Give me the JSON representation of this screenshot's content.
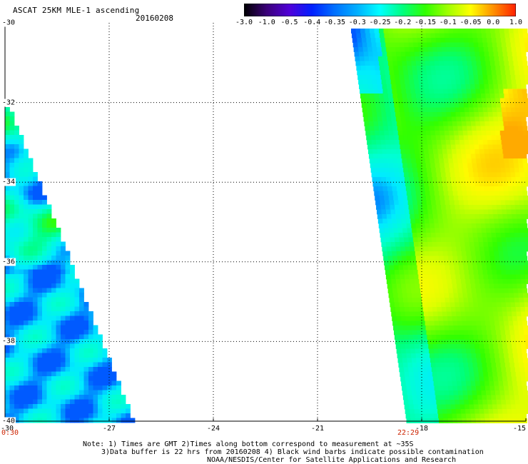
{
  "header": {
    "title": "ASCAT 25KM MLE-1 ascending",
    "date": "20160208"
  },
  "colorbar": {
    "labels": [
      "-3.0",
      "-1.0",
      "-0.5",
      "-0.4",
      "-0.35",
      "-0.3",
      "-0.25",
      "-0.2",
      "-0.15",
      "-0.1",
      "-0.05",
      "0.0",
      "1.0"
    ],
    "colors": [
      "#000000",
      "#3a0078",
      "#5000d8",
      "#0020ff",
      "#0070ff",
      "#00b0ff",
      "#00ffff",
      "#00ff80",
      "#30ff00",
      "#a0ff00",
      "#ffff00",
      "#ff9000",
      "#ff2000"
    ]
  },
  "axes": {
    "y_labels": [
      "-30",
      "-32",
      "-34",
      "-36",
      "-38",
      "-40"
    ],
    "x_labels": [
      "-30",
      "-27",
      "-24",
      "-21",
      "-18",
      "-15"
    ]
  },
  "times": {
    "left": "0:30",
    "right": "22:29"
  },
  "notes": {
    "line1": "Note: 1) Times are GMT 2)Times along bottom correspond to measurement at ~35S",
    "line2": "3)Data buffer is 22 hrs from 20160208 4) Black wind barbs indicate possible contamination",
    "line3": "NOAA/NESDIS/Center for Satellite Applications and Research"
  }
}
